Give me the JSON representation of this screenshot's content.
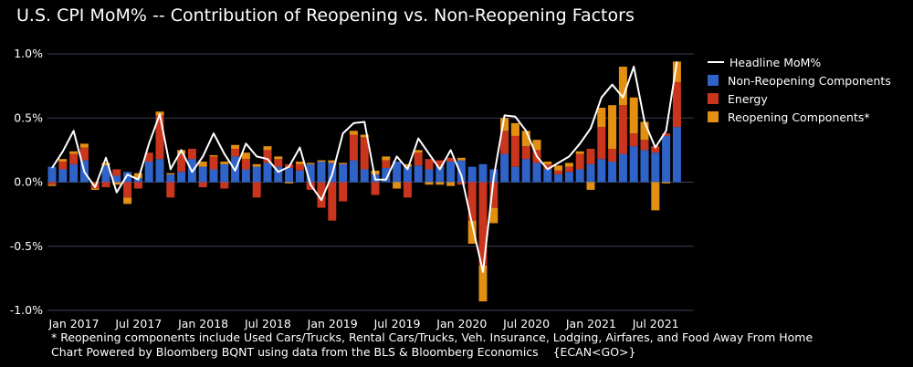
{
  "title": "U.S. CPI MoM% -- Contribution of Reopening vs. Non-Reopening Factors",
  "footnotes": {
    "line1": "* Reopening components include Used Cars/Trucks, Rental Cars/Trucks, Veh. Insurance, Lodging, Airfares, and Food Away From Home",
    "line2": "Chart Powered by Bloomberg BQNT using data from the BLS & Bloomberg Economics    {ECAN<GO>}"
  },
  "colors": {
    "non_reopening": "#2f63c8",
    "energy": "#c9361d",
    "reopening": "#e38f12",
    "headline": "#ffffff",
    "grid": "#3a3f55",
    "background": "#000000"
  },
  "chart_data": {
    "type": "bar",
    "stacked": true,
    "title": "U.S. CPI MoM% -- Contribution of Reopening vs. Non-Reopening Factors",
    "ylim": [
      -1.0,
      1.0
    ],
    "yticks": [
      "1.0%",
      "0.5%",
      "0.0%",
      "-0.5%",
      "-1.0%"
    ],
    "ytick_values": [
      1.0,
      0.5,
      0.0,
      -0.5,
      -1.0
    ],
    "xtick_labels": [
      "Jan 2017",
      "Jul 2017",
      "Jan 2018",
      "Jul 2018",
      "Jan 2019",
      "Jul 2019",
      "Jan 2020",
      "Jul 2020",
      "Jan 2021",
      "Jul 2021"
    ],
    "xtick_index": [
      0,
      6,
      12,
      18,
      24,
      30,
      36,
      42,
      48,
      54
    ],
    "categories": [
      "2016-12",
      "2017-01",
      "2017-02",
      "2017-03",
      "2017-04",
      "2017-05",
      "2017-06",
      "2017-07",
      "2017-08",
      "2017-09",
      "2017-10",
      "2017-11",
      "2017-12",
      "2018-01",
      "2018-02",
      "2018-03",
      "2018-04",
      "2018-05",
      "2018-06",
      "2018-07",
      "2018-08",
      "2018-09",
      "2018-10",
      "2018-11",
      "2018-12",
      "2019-01",
      "2019-02",
      "2019-03",
      "2019-04",
      "2019-05",
      "2019-06",
      "2019-07",
      "2019-08",
      "2019-09",
      "2019-10",
      "2019-11",
      "2019-12",
      "2020-01",
      "2020-02",
      "2020-03",
      "2020-04",
      "2020-05",
      "2020-06",
      "2020-07",
      "2020-08",
      "2020-09",
      "2020-10",
      "2020-11",
      "2020-12",
      "2021-01",
      "2021-02",
      "2021-03",
      "2021-04",
      "2021-05",
      "2021-06",
      "2021-07",
      "2021-08",
      "2021-09",
      "2021-10"
    ],
    "series": [
      {
        "name": "Non-Reopening Components",
        "values": [
          0.12,
          0.1,
          0.14,
          0.17,
          0.0,
          0.13,
          0.05,
          0.08,
          0.03,
          0.16,
          0.18,
          0.06,
          0.08,
          0.18,
          0.12,
          0.1,
          0.14,
          0.2,
          0.1,
          0.12,
          0.15,
          0.12,
          0.11,
          0.09,
          0.14,
          0.16,
          0.15,
          0.14,
          0.17,
          0.1,
          0.06,
          0.11,
          0.16,
          0.12,
          0.13,
          0.1,
          0.12,
          0.16,
          0.17,
          0.12,
          0.14,
          0.1,
          0.22,
          0.12,
          0.18,
          0.15,
          0.1,
          0.06,
          0.08,
          0.1,
          0.14,
          0.18,
          0.16,
          0.22,
          0.28,
          0.25,
          0.23,
          0.36,
          0.43
        ]
      },
      {
        "name": "Energy",
        "values": [
          -0.02,
          0.06,
          0.08,
          0.1,
          -0.05,
          -0.04,
          0.05,
          -0.12,
          -0.05,
          0.07,
          0.34,
          -0.12,
          0.14,
          0.08,
          -0.04,
          0.1,
          -0.05,
          0.06,
          0.08,
          -0.12,
          0.1,
          0.06,
          0.03,
          0.05,
          -0.06,
          -0.2,
          -0.3,
          -0.15,
          0.2,
          0.25,
          -0.1,
          0.06,
          0.0,
          -0.12,
          0.1,
          0.08,
          0.05,
          0.03,
          -0.02,
          -0.3,
          -0.65,
          -0.2,
          0.18,
          0.24,
          0.1,
          0.1,
          0.04,
          0.03,
          0.04,
          0.12,
          0.12,
          0.25,
          0.1,
          0.38,
          0.1,
          0.08,
          0.05,
          0.02,
          0.35
        ]
      },
      {
        "name": "Reopening Components",
        "values": [
          -0.01,
          0.02,
          0.02,
          0.03,
          -0.01,
          0.02,
          -0.02,
          -0.05,
          0.04,
          0.0,
          0.03,
          0.01,
          0.03,
          0.0,
          0.04,
          0.01,
          0.02,
          0.03,
          0.05,
          0.02,
          0.03,
          0.02,
          -0.01,
          0.02,
          0.01,
          0.01,
          0.02,
          0.01,
          0.03,
          0.02,
          0.03,
          0.03,
          -0.05,
          0.02,
          0.02,
          -0.02,
          -0.02,
          -0.03,
          0.02,
          -0.18,
          -0.28,
          -0.12,
          0.1,
          0.1,
          0.12,
          0.08,
          0.02,
          0.04,
          0.03,
          0.02,
          -0.06,
          0.15,
          0.34,
          0.3,
          0.28,
          0.14,
          -0.22,
          -0.01,
          0.16
        ]
      }
    ],
    "line": {
      "name": "Headline MoM%",
      "values": [
        0.11,
        0.24,
        0.4,
        0.08,
        -0.04,
        0.19,
        -0.08,
        0.06,
        0.02,
        0.3,
        0.53,
        0.1,
        0.25,
        0.08,
        0.2,
        0.38,
        0.22,
        0.09,
        0.3,
        0.2,
        0.18,
        0.08,
        0.12,
        0.27,
        -0.02,
        -0.14,
        0.06,
        0.38,
        0.46,
        0.47,
        0.02,
        0.02,
        0.2,
        0.1,
        0.34,
        0.22,
        0.1,
        0.25,
        0.05,
        -0.33,
        -0.7,
        0.04,
        0.52,
        0.51,
        0.4,
        0.2,
        0.1,
        0.15,
        0.2,
        0.3,
        0.42,
        0.66,
        0.76,
        0.66,
        0.9,
        0.47,
        0.27,
        0.4,
        0.94
      ]
    },
    "legend": {
      "position": "right",
      "entries": [
        "Headline MoM%",
        "Non-Reopening Components",
        "Energy",
        "Reopening Components*"
      ]
    }
  }
}
